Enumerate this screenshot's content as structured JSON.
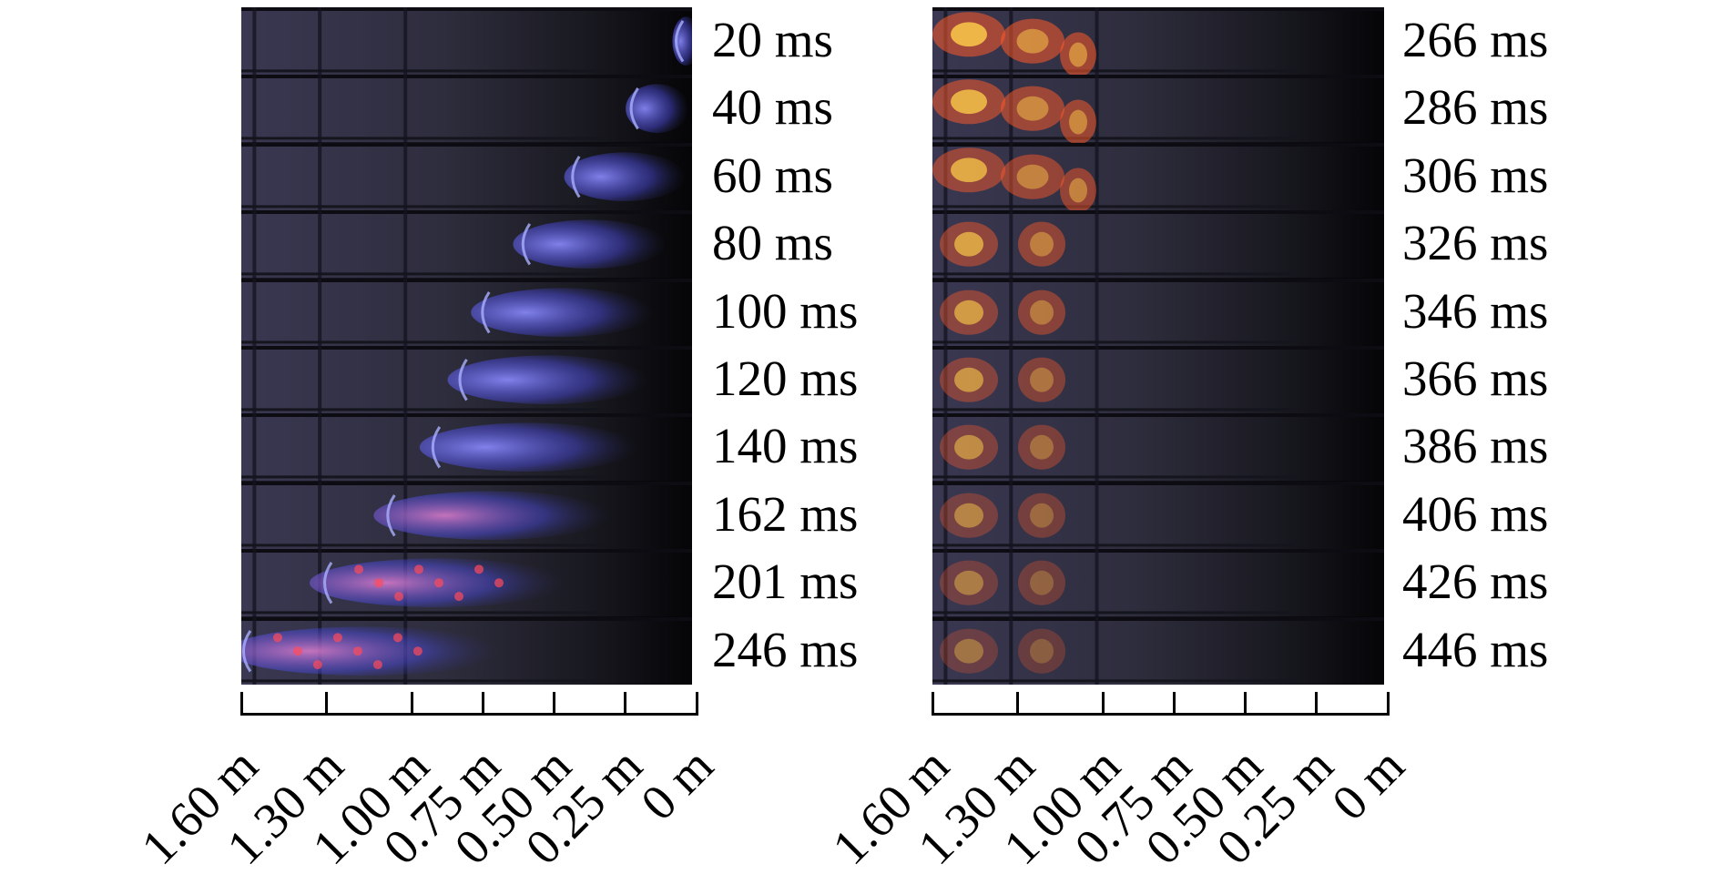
{
  "left_panel": {
    "frames": [
      "20 ms",
      "40 ms",
      "60 ms",
      "80 ms",
      "100 ms",
      "120 ms",
      "140 ms",
      "162 ms",
      "201 ms",
      "246 ms"
    ],
    "flame_front": [
      0.0,
      0.12,
      0.25,
      0.36,
      0.45,
      0.5,
      0.56,
      0.66,
      0.8,
      0.98
    ],
    "flame_color": "#5a5cff"
  },
  "right_panel": {
    "frames": [
      "266 ms",
      "286 ms",
      "306 ms",
      "326 ms",
      "346 ms",
      "366 ms",
      "386 ms",
      "406 ms",
      "426 ms",
      "446 ms"
    ],
    "flame_color": "#ff7a2a"
  },
  "axis": {
    "ticks": [
      "1.60 m",
      "1.30 m",
      "1.00 m",
      "0.75 m",
      "0.50 m",
      "0.25 m",
      "0 m"
    ],
    "values": [
      1.6,
      1.3,
      1.0,
      0.75,
      0.5,
      0.25,
      0.0
    ]
  }
}
